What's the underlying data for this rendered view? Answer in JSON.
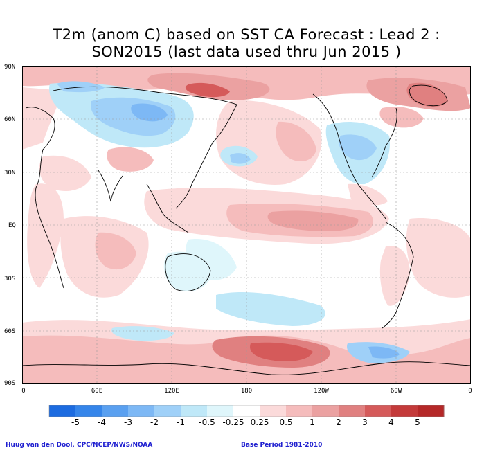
{
  "title": {
    "line1": "T2m (anom C) based on SST CA Forecast : Lead 2 :",
    "line2": "SON2015 (last data used thru Jun 2015 )"
  },
  "axes": {
    "lat_labels": [
      "90N",
      "60N",
      "30N",
      "EQ",
      "30S",
      "60S",
      "90S"
    ],
    "lon_labels": [
      "0",
      "60E",
      "120E",
      "180",
      "120W",
      "60W",
      "0"
    ]
  },
  "colorbar": {
    "labels": [
      "-5",
      "-4",
      "-3",
      "-2",
      "-1",
      "-0.5",
      "-0.25",
      "0.25",
      "0.5",
      "1",
      "2",
      "3",
      "4",
      "5"
    ],
    "colors": [
      "#1c6be0",
      "#3585ea",
      "#5aa0f0",
      "#7db8f5",
      "#9fd0f8",
      "#bfe8f8",
      "#dff6fb",
      "#ffffff",
      "#fbdada",
      "#f5bcbc",
      "#eba1a1",
      "#e08080",
      "#d55a5a",
      "#c43a3a",
      "#b52828"
    ]
  },
  "footer": {
    "left": "Huug van den Dool, CPC/NCEP/NWS/NOAA",
    "right": "Base Period 1981-2010"
  }
}
